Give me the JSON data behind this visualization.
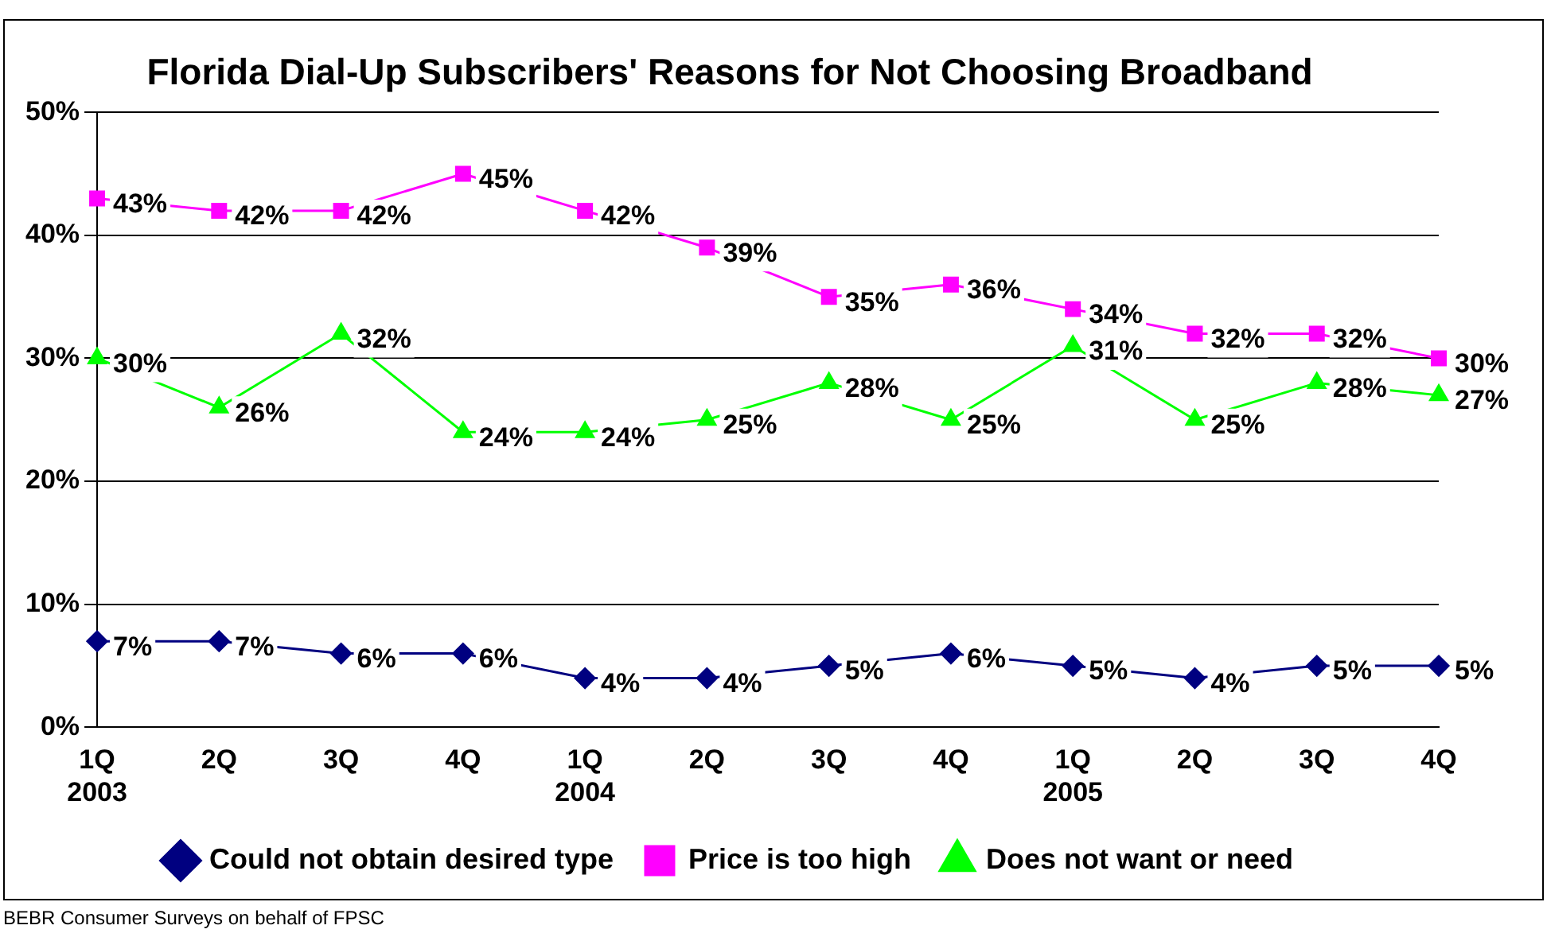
{
  "chart_data": {
    "type": "line",
    "title": "Florida Dial-Up Subscribers' Reasons for Not Choosing Broadband",
    "categories": [
      "1Q\n2003",
      "2Q",
      "3Q",
      "4Q",
      "1Q\n2004",
      "2Q",
      "3Q",
      "4Q",
      "1Q\n2005",
      "2Q",
      "3Q",
      "4Q"
    ],
    "series": [
      {
        "name": "Could not obtain desired type",
        "color": "#000080",
        "marker": "diamond",
        "values": [
          7,
          7,
          6,
          6,
          4,
          4,
          5,
          6,
          5,
          4,
          5,
          5
        ],
        "value_labels": [
          "7%",
          "7%",
          "6%",
          "6%",
          "4%",
          "4%",
          "5%",
          "6%",
          "5%",
          "4%",
          "5%",
          "5%"
        ]
      },
      {
        "name": "Price is too high",
        "color": "#ff00ff",
        "marker": "square",
        "values": [
          43,
          42,
          42,
          45,
          42,
          39,
          35,
          36,
          34,
          32,
          32,
          30
        ],
        "value_labels": [
          "43%",
          "42%",
          "42%",
          "45%",
          "42%",
          "39%",
          "35%",
          "36%",
          "34%",
          "32%",
          "32%",
          "30%"
        ]
      },
      {
        "name": "Does not want or need",
        "color": "#00ff00",
        "marker": "triangle",
        "values": [
          30,
          26,
          32,
          24,
          24,
          25,
          28,
          25,
          31,
          25,
          28,
          27
        ],
        "value_labels": [
          "30%",
          "26%",
          "32%",
          "24%",
          "24%",
          "25%",
          "28%",
          "25%",
          "31%",
          "25%",
          "28%",
          "27%"
        ]
      }
    ],
    "ylim": [
      0,
      50
    ],
    "yticks": [
      {
        "value": 0,
        "label": "0%"
      },
      {
        "value": 10,
        "label": "10%"
      },
      {
        "value": 20,
        "label": "20%"
      },
      {
        "value": 30,
        "label": "30%"
      },
      {
        "value": 40,
        "label": "40%"
      },
      {
        "value": 50,
        "label": "50%"
      }
    ],
    "grid": "y",
    "legend": "bottom",
    "line_style": "solid",
    "annotations": [
      "BEBR Consumer Surveys on behalf of FPSC"
    ]
  }
}
